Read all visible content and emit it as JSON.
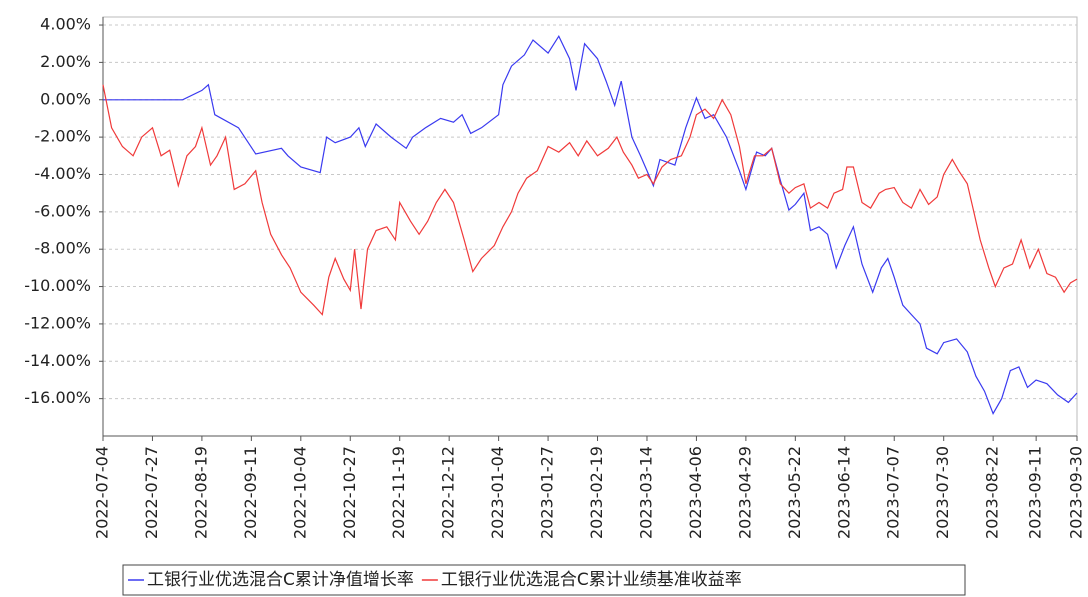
{
  "chart_data": {
    "type": "line",
    "xlim": [
      "2022-07-04",
      "2023-09-30"
    ],
    "xticks": [
      "2022-07-04",
      "2022-07-27",
      "2022-08-19",
      "2022-09-11",
      "2022-10-04",
      "2022-10-27",
      "2022-11-19",
      "2022-12-12",
      "2023-01-04",
      "2023-01-27",
      "2023-02-19",
      "2023-03-14",
      "2023-04-06",
      "2023-04-29",
      "2023-05-22",
      "2023-06-14",
      "2023-07-07",
      "2023-07-30",
      "2023-08-22",
      "2023-09-11",
      "2023-09-30"
    ],
    "ylim": [
      -18,
      4.43
    ],
    "yticks": [
      {
        "value": 4,
        "label": "4.00%"
      },
      {
        "value": 2,
        "label": "2.00%"
      },
      {
        "value": 0,
        "label": "0.00%"
      },
      {
        "value": -2,
        "label": "-2.00%"
      },
      {
        "value": -4,
        "label": "-4.00%"
      },
      {
        "value": -6,
        "label": "-6.00%"
      },
      {
        "value": -8,
        "label": "-8.00%"
      },
      {
        "value": -10,
        "label": "-10.00%"
      },
      {
        "value": -12,
        "label": "-12.00%"
      },
      {
        "value": -14,
        "label": "-14.00%"
      },
      {
        "value": -16,
        "label": "-16.00%"
      }
    ],
    "grid": true,
    "series": [
      {
        "name": "工银行业优选混合C累计净值增长率",
        "color": "#3a3af0",
        "x": [
          "2022-07-04",
          "2022-08-10",
          "2022-08-19",
          "2022-08-22",
          "2022-08-25",
          "2022-09-05",
          "2022-09-13",
          "2022-09-25",
          "2022-09-28",
          "2022-10-04",
          "2022-10-13",
          "2022-10-16",
          "2022-10-20",
          "2022-10-27",
          "2022-10-31",
          "2022-11-03",
          "2022-11-08",
          "2022-11-15",
          "2022-11-22",
          "2022-11-25",
          "2022-12-01",
          "2022-12-08",
          "2022-12-14",
          "2022-12-18",
          "2022-12-22",
          "2022-12-27",
          "2023-01-04",
          "2023-01-06",
          "2023-01-10",
          "2023-01-16",
          "2023-01-20",
          "2023-01-27",
          "2023-02-01",
          "2023-02-06",
          "2023-02-09",
          "2023-02-13",
          "2023-02-19",
          "2023-02-23",
          "2023-02-27",
          "2023-03-02",
          "2023-03-07",
          "2023-03-11",
          "2023-03-14",
          "2023-03-17",
          "2023-03-20",
          "2023-03-27",
          "2023-04-01",
          "2023-04-06",
          "2023-04-10",
          "2023-04-14",
          "2023-04-20",
          "2023-04-26",
          "2023-04-29",
          "2023-05-04",
          "2023-05-08",
          "2023-05-11",
          "2023-05-15",
          "2023-05-19",
          "2023-05-22",
          "2023-05-26",
          "2023-05-29",
          "2023-06-02",
          "2023-06-06",
          "2023-06-10",
          "2023-06-14",
          "2023-06-18",
          "2023-06-22",
          "2023-06-27",
          "2023-07-01",
          "2023-07-04",
          "2023-07-07",
          "2023-07-11",
          "2023-07-15",
          "2023-07-19",
          "2023-07-22",
          "2023-07-27",
          "2023-07-30",
          "2023-08-05",
          "2023-08-10",
          "2023-08-14",
          "2023-08-18",
          "2023-08-22",
          "2023-08-26",
          "2023-08-30",
          "2023-09-03",
          "2023-09-07",
          "2023-09-11",
          "2023-09-16",
          "2023-09-21",
          "2023-09-26",
          "2023-09-30"
        ],
        "values": [
          0,
          0,
          0.5,
          0.8,
          -0.8,
          -1.5,
          -2.9,
          -2.6,
          -3.0,
          -3.6,
          -3.9,
          -2.0,
          -2.3,
          -2.0,
          -1.5,
          -2.5,
          -1.3,
          -2.0,
          -2.6,
          -2.0,
          -1.5,
          -1.0,
          -1.2,
          -0.8,
          -1.8,
          -1.5,
          -0.8,
          0.8,
          1.8,
          2.4,
          3.2,
          2.5,
          3.4,
          2.2,
          0.5,
          3.0,
          2.2,
          1.0,
          -0.3,
          1.0,
          -2.0,
          -3.0,
          -3.8,
          -4.6,
          -3.2,
          -3.5,
          -1.5,
          0.1,
          -1.0,
          -0.8,
          -2.0,
          -3.8,
          -4.8,
          -2.8,
          -3.0,
          -2.6,
          -4.3,
          -5.9,
          -5.6,
          -5.0,
          -7.0,
          -6.8,
          -7.2,
          -9.0,
          -7.8,
          -6.8,
          -8.8,
          -10.3,
          -9.0,
          -8.5,
          -9.5,
          -11.0,
          -11.5,
          -12.0,
          -13.3,
          -13.6,
          -13.0,
          -12.8,
          -13.5,
          -14.8,
          -15.6,
          -16.8,
          -16.0,
          -14.5,
          -14.3,
          -15.4,
          -15.0,
          -15.2,
          -15.8,
          -16.2,
          -15.7
        ]
      },
      {
        "name": "工银行业优选混合C累计业绩基准收益率",
        "color": "#f03a3a",
        "x": [
          "2022-07-04",
          "2022-07-08",
          "2022-07-13",
          "2022-07-18",
          "2022-07-22",
          "2022-07-27",
          "2022-07-31",
          "2022-08-04",
          "2022-08-08",
          "2022-08-12",
          "2022-08-16",
          "2022-08-19",
          "2022-08-23",
          "2022-08-26",
          "2022-08-30",
          "2022-09-03",
          "2022-09-08",
          "2022-09-13",
          "2022-09-16",
          "2022-09-20",
          "2022-09-25",
          "2022-09-29",
          "2022-10-04",
          "2022-10-10",
          "2022-10-14",
          "2022-10-17",
          "2022-10-20",
          "2022-10-24",
          "2022-10-27",
          "2022-10-29",
          "2022-11-01",
          "2022-11-04",
          "2022-11-08",
          "2022-11-13",
          "2022-11-17",
          "2022-11-19",
          "2022-11-24",
          "2022-11-28",
          "2022-12-02",
          "2022-12-06",
          "2022-12-10",
          "2022-12-14",
          "2022-12-19",
          "2022-12-23",
          "2022-12-27",
          "2023-01-02",
          "2023-01-06",
          "2023-01-10",
          "2023-01-13",
          "2023-01-17",
          "2023-01-22",
          "2023-01-27",
          "2023-02-01",
          "2023-02-06",
          "2023-02-10",
          "2023-02-14",
          "2023-02-19",
          "2023-02-24",
          "2023-02-28",
          "2023-03-03",
          "2023-03-07",
          "2023-03-10",
          "2023-03-14",
          "2023-03-17",
          "2023-03-21",
          "2023-03-25",
          "2023-03-30",
          "2023-04-03",
          "2023-04-06",
          "2023-04-10",
          "2023-04-14",
          "2023-04-18",
          "2023-04-22",
          "2023-04-26",
          "2023-04-29",
          "2023-05-03",
          "2023-05-07",
          "2023-05-11",
          "2023-05-15",
          "2023-05-19",
          "2023-05-22",
          "2023-05-26",
          "2023-05-29",
          "2023-06-02",
          "2023-06-06",
          "2023-06-09",
          "2023-06-13",
          "2023-06-15",
          "2023-06-18",
          "2023-06-22",
          "2023-06-26",
          "2023-06-30",
          "2023-07-03",
          "2023-07-07",
          "2023-07-11",
          "2023-07-15",
          "2023-07-19",
          "2023-07-23",
          "2023-07-27",
          "2023-07-30",
          "2023-08-03",
          "2023-08-06",
          "2023-08-10",
          "2023-08-13",
          "2023-08-16",
          "2023-08-20",
          "2023-08-23",
          "2023-08-27",
          "2023-08-31",
          "2023-09-04",
          "2023-09-08",
          "2023-09-12",
          "2023-09-16",
          "2023-09-20",
          "2023-09-24",
          "2023-09-27",
          "2023-09-30"
        ],
        "values": [
          0.8,
          -1.5,
          -2.5,
          -3.0,
          -2.0,
          -1.5,
          -3.0,
          -2.7,
          -4.6,
          -3.0,
          -2.5,
          -1.5,
          -3.5,
          -3.0,
          -2.0,
          -4.8,
          -4.5,
          -3.8,
          -5.5,
          -7.2,
          -8.3,
          -9.0,
          -10.3,
          -11.0,
          -11.5,
          -9.5,
          -8.5,
          -9.6,
          -10.2,
          -8.0,
          -11.2,
          -8.0,
          -7.0,
          -6.8,
          -7.5,
          -5.5,
          -6.5,
          -7.2,
          -6.5,
          -5.5,
          -4.8,
          -5.5,
          -7.5,
          -9.2,
          -8.5,
          -7.8,
          -6.8,
          -6.0,
          -5.0,
          -4.2,
          -3.8,
          -2.5,
          -2.8,
          -2.3,
          -3.0,
          -2.2,
          -3.0,
          -2.6,
          -2.0,
          -2.8,
          -3.5,
          -4.2,
          -4.0,
          -4.5,
          -3.6,
          -3.2,
          -3.0,
          -2.0,
          -0.8,
          -0.5,
          -1.0,
          0.0,
          -0.8,
          -2.5,
          -4.5,
          -3.0,
          -3.0,
          -2.6,
          -4.5,
          -5.0,
          -4.7,
          -4.5,
          -5.8,
          -5.5,
          -5.8,
          -5.0,
          -4.8,
          -3.6,
          -3.6,
          -5.5,
          -5.8,
          -5.0,
          -4.8,
          -4.7,
          -5.5,
          -5.8,
          -4.8,
          -5.6,
          -5.2,
          -4.0,
          -3.2,
          -3.8,
          -4.5,
          -6.0,
          -7.5,
          -9.0,
          -10.0,
          -9.0,
          -8.8,
          -7.5,
          -9.0,
          -8.0,
          -9.3,
          -9.5,
          -10.3,
          -9.8,
          -9.6
        ]
      }
    ]
  }
}
